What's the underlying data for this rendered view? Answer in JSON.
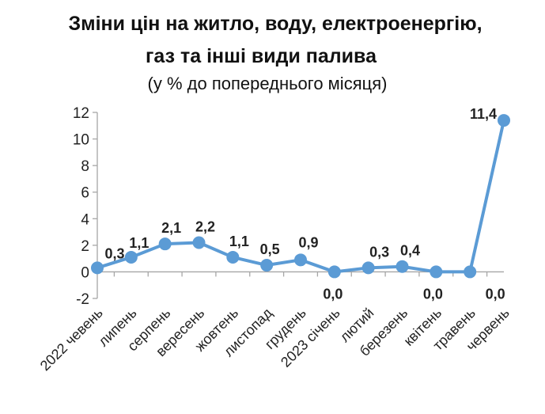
{
  "chart_data": {
    "type": "line",
    "title_line1": "Зміни цін на житло, воду, електроенергію,",
    "title_line2": "газ та інші види палива",
    "subtitle": "(у % до попереднього місяця)",
    "xlabel": "",
    "ylabel": "",
    "ylim": [
      -2,
      12
    ],
    "yticks": [
      "-2",
      "0",
      "2",
      "4",
      "6",
      "8",
      "10",
      "12"
    ],
    "grid": false,
    "legend": "none",
    "categories": [
      "2022 чевень",
      "липень",
      "серпень",
      "вересень",
      "жовтень",
      "листопад",
      "грудень",
      "2023 січень",
      "лютий",
      "березень",
      "квітень",
      "травень",
      "червень"
    ],
    "values": [
      0.3,
      1.1,
      2.1,
      2.2,
      1.1,
      0.5,
      0.9,
      0.0,
      0.3,
      0.4,
      0.0,
      0.0,
      11.4
    ],
    "data_labels": [
      "0,3",
      "1,1",
      "2,1",
      "2,2",
      "1,1",
      "0,5",
      "0,9",
      "0,0",
      "0,3",
      "0,4",
      "0,0",
      "0,0",
      "11,4"
    ],
    "line_color": "#5b9bd5",
    "axis_color": "#a6a6a6"
  }
}
